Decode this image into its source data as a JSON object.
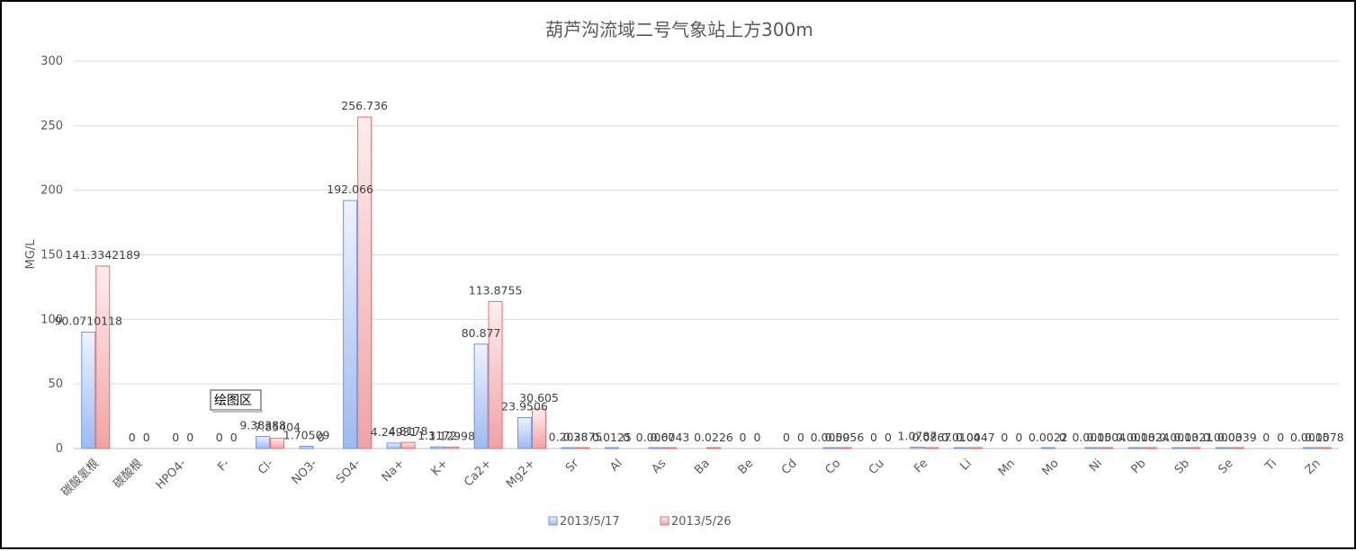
{
  "chart_data": {
    "type": "bar",
    "title": "葫芦沟流域二号气象站上方300m",
    "ylabel": "MG/L",
    "xlabel": "",
    "ylim": [
      0,
      300
    ],
    "yticks": [
      0,
      50,
      100,
      150,
      200,
      250,
      300
    ],
    "grid": true,
    "legend_position": "bottom",
    "categories": [
      "碳酸氢根",
      "碳酸根",
      "HPO4-",
      "F-",
      "Cl-",
      "NO3-",
      "SO4-",
      "Na+",
      "K+",
      "Ca2+",
      "Mg2+",
      "Sr",
      "Al",
      "As",
      "Ba",
      "Be",
      "Cd",
      "Co",
      "Cu",
      "Fe",
      "Li",
      "Mn",
      "Mo",
      "Ni",
      "Pb",
      "Sb",
      "Se",
      "Ti",
      "Zn"
    ],
    "series": [
      {
        "name": "2013/5/17",
        "color": "#6d96e8",
        "values": [
          90.0710118,
          0,
          0,
          0,
          9.38388,
          1.70509,
          192.066,
          4.24931,
          1.3172,
          80.877,
          23.9506,
          0.2038,
          0.0125,
          0.0067,
          null,
          0,
          0,
          0.0059,
          0,
          1.0787,
          0.0104,
          0,
          0.0022,
          0.0015,
          0.0018,
          0.0013,
          0.0003,
          0,
          0.0015
        ],
        "labels": [
          "90.0710118",
          "0",
          "0",
          "0",
          "9.38388",
          "1.70509",
          "192.066",
          "4.24931",
          "1.3172",
          "80.877",
          "23.9506",
          "0.2038",
          "0.0125",
          "0.0067",
          "",
          "0",
          "0",
          "0.0059",
          "0",
          "1.0787",
          "0.0104",
          "0",
          "0.0022",
          "0.0015",
          "0.0018",
          "0.0013",
          "0.0003",
          "0",
          "0.0015"
        ]
      },
      {
        "name": "2013/5/26",
        "color": "#e86d6d",
        "values": [
          141.3342189,
          0,
          0,
          0,
          7.85404,
          0,
          256.736,
          4.8178,
          1.12998,
          113.8755,
          30.605,
          0.2875,
          0,
          0.0043,
          0.0226,
          0,
          0,
          0.0056,
          0,
          0.0867,
          0.0047,
          0,
          0,
          0.0004,
          0.0024,
          0.0021,
          0.0039,
          0,
          0.0078
        ],
        "labels": [
          "141.3342189",
          "0",
          "0",
          "0",
          "7.85404",
          "0",
          "256.736",
          "4.8178",
          "1.12998",
          "113.8755",
          "30.605",
          "0.2875",
          "0",
          "0.0043",
          "0.0226",
          "0",
          "0",
          "0.0056",
          "0",
          "0.0867",
          "0.0047",
          "0",
          "0",
          "0.0004",
          "0.0024",
          "0.0021",
          "0.0039",
          "0",
          "0.0078"
        ]
      }
    ]
  },
  "tooltip": {
    "text": "绘图区"
  }
}
